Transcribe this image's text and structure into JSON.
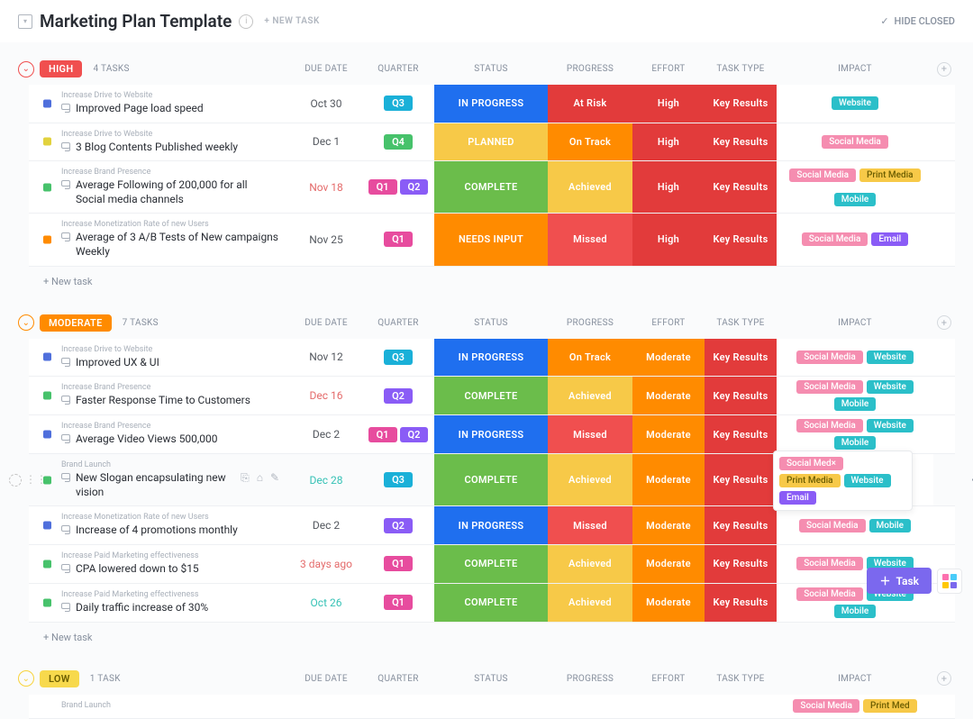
{
  "page": {
    "title": "Marketing Plan Template",
    "new_task": "+ NEW TASK",
    "hide_closed": "HIDE CLOSED",
    "new_task_row": "+ New task",
    "fab_task": "Task"
  },
  "columns": {
    "due_date": "DUE DATE",
    "quarter": "QUARTER",
    "status": "STATUS",
    "progress": "PROGRESS",
    "effort": "EFFORT",
    "task_type": "TASK TYPE",
    "impact": "IMPACT"
  },
  "colors": {
    "q1": "#e74c9e",
    "q2": "#8a5cf6",
    "q3": "#1ab0d8",
    "q4": "#47c26b",
    "status_in_progress": "#1f6fef",
    "status_planned": "#f7c948",
    "status_complete": "#6bbd4b",
    "status_needs_input": "#ff8b00",
    "prog_at_risk": "#e23b3b",
    "prog_on_track": "#ff8b00",
    "prog_achieved": "#f7c948",
    "prog_missed": "#f04f4f",
    "eff_high": "#e23b3b",
    "eff_moderate": "#ff8b00",
    "type_key": "#e23b3b",
    "tag_social": "#f58db0",
    "tag_website": "#2bbfc9",
    "tag_print": "#f7c948",
    "tag_mobile": "#2bbfc9",
    "tag_email": "#8a5cf6",
    "pill_high": "#f04f4f",
    "pill_moderate": "#ff8b00",
    "pill_low": "#f7d94c",
    "date_red": "#e46b6b",
    "date_teal": "#37c2b6"
  },
  "groups": [
    {
      "key": "high",
      "label": "High",
      "count": "4 TASKS",
      "pill_color": "#f04f4f",
      "chev": "chev-high",
      "tasks": [
        {
          "sq": "#4f6fdc",
          "crumb": "Increase Drive to Website",
          "name": "Improved Page load speed",
          "date": "Oct 30",
          "date_color": "#54585f",
          "quarters": [
            "Q3"
          ],
          "status": "IN PROGRESS",
          "status_c": "status_in_progress",
          "progress": "At Risk",
          "progress_c": "prog_at_risk",
          "effort": "High",
          "effort_c": "eff_high",
          "type": "Key Results",
          "tags": [
            {
              "t": "Website",
              "c": "tag_website"
            }
          ]
        },
        {
          "sq": "#e2d23e",
          "crumb": "Increase Drive to Website",
          "name": "3 Blog Contents Published weekly",
          "date": "Dec 1",
          "date_color": "#54585f",
          "quarters": [
            "Q4"
          ],
          "status": "PLANNED",
          "status_c": "status_planned",
          "progress": "On Track",
          "progress_c": "prog_on_track",
          "effort": "High",
          "effort_c": "eff_high",
          "type": "Key Results",
          "tags": [
            {
              "t": "Social Media",
              "c": "tag_social"
            }
          ]
        },
        {
          "sq": "#47c26b",
          "tall": true,
          "crumb": "Increase Brand Presence",
          "name": "Average Following of 200,000 for all Social media channels",
          "date": "Nov 18",
          "date_color": "#e46b6b",
          "quarters": [
            "Q1",
            "Q2"
          ],
          "status": "COMPLETE",
          "status_c": "status_complete",
          "progress": "Achieved",
          "progress_c": "prog_achieved",
          "effort": "High",
          "effort_c": "eff_high",
          "type": "Key Results",
          "tags": [
            {
              "t": "Social Media",
              "c": "tag_social"
            },
            {
              "t": "Print Media",
              "c": "tag_print"
            },
            {
              "t": "Mobile",
              "c": "tag_mobile"
            }
          ]
        },
        {
          "sq": "#ff8b00",
          "tall": true,
          "crumb": "Increase Monetization Rate of new Users",
          "name": "Average of 3 A/B Tests of New campaigns Weekly",
          "date": "Nov 25",
          "date_color": "#54585f",
          "quarters": [
            "Q1"
          ],
          "status": "NEEDS INPUT",
          "status_c": "status_needs_input",
          "progress": "Missed",
          "progress_c": "prog_missed",
          "effort": "High",
          "effort_c": "eff_high",
          "type": "Key Results",
          "tags": [
            {
              "t": "Social Media",
              "c": "tag_social"
            },
            {
              "t": "Email",
              "c": "tag_email"
            }
          ]
        }
      ]
    },
    {
      "key": "moderate",
      "label": "Moderate",
      "count": "7 TASKS",
      "pill_color": "#ff8b00",
      "chev": "chev-mod",
      "tasks": [
        {
          "sq": "#4f6fdc",
          "crumb": "Increase Drive to Website",
          "name": "Improved UX & UI",
          "date": "Nov 12",
          "date_color": "#54585f",
          "quarters": [
            "Q3"
          ],
          "status": "IN PROGRESS",
          "status_c": "status_in_progress",
          "progress": "On Track",
          "progress_c": "prog_on_track",
          "effort": "Moderate",
          "effort_c": "eff_moderate",
          "type": "Key Results",
          "tags": [
            {
              "t": "Social Media",
              "c": "tag_social"
            },
            {
              "t": "Website",
              "c": "tag_website"
            }
          ]
        },
        {
          "sq": "#47c26b",
          "crumb": "Increase Brand Presence",
          "name": "Faster Response Time to Customers",
          "date": "Dec 16",
          "date_color": "#e46b6b",
          "quarters": [
            "Q2"
          ],
          "status": "COMPLETE",
          "status_c": "status_complete",
          "progress": "Achieved",
          "progress_c": "prog_achieved",
          "effort": "Moderate",
          "effort_c": "eff_moderate",
          "type": "Key Results",
          "tags": [
            {
              "t": "Social Media",
              "c": "tag_social"
            },
            {
              "t": "Website",
              "c": "tag_website"
            },
            {
              "t": "Mobile",
              "c": "tag_mobile"
            }
          ]
        },
        {
          "sq": "#4f6fdc",
          "crumb": "Increase Brand Presence",
          "name": "Average Video Views 500,000",
          "date": "Dec 2",
          "date_color": "#54585f",
          "quarters": [
            "Q1",
            "Q2"
          ],
          "status": "IN PROGRESS",
          "status_c": "status_in_progress",
          "progress": "Missed",
          "progress_c": "prog_missed",
          "effort": "Moderate",
          "effort_c": "eff_moderate",
          "type": "Key Results",
          "tags": [
            {
              "t": "Social Media",
              "c": "tag_social"
            },
            {
              "t": "Website",
              "c": "tag_website"
            },
            {
              "t": "Mobile",
              "c": "tag_mobile"
            }
          ]
        },
        {
          "sq": "#47c26b",
          "hover": true,
          "crumb": "Brand Launch",
          "name": "New Slogan encapsulating new vision",
          "date": "Dec 28",
          "date_color": "#37c2b6",
          "quarters": [
            "Q3"
          ],
          "status": "COMPLETE",
          "status_c": "status_complete",
          "progress": "Achieved",
          "progress_c": "prog_achieved",
          "effort": "Moderate",
          "effort_c": "eff_moderate",
          "type": "Key Results",
          "popup_tags": [
            {
              "t": "Social Med×",
              "c": "tag_social"
            },
            {
              "t": "Print Media",
              "c": "tag_print"
            },
            {
              "t": "Website",
              "c": "tag_website"
            },
            {
              "t": "Email",
              "c": "tag_email"
            }
          ]
        },
        {
          "sq": "#4f6fdc",
          "crumb": "Increase Monetization Rate of new Users",
          "name": "Increase of 4 promotions monthly",
          "date": "Dec 2",
          "date_color": "#54585f",
          "quarters": [
            "Q2"
          ],
          "status": "IN PROGRESS",
          "status_c": "status_in_progress",
          "progress": "Missed",
          "progress_c": "prog_missed",
          "effort": "Moderate",
          "effort_c": "eff_moderate",
          "type": "Key Results",
          "tags": [
            {
              "t": "Social Media",
              "c": "tag_social"
            },
            {
              "t": "Mobile",
              "c": "tag_mobile"
            }
          ]
        },
        {
          "sq": "#47c26b",
          "crumb": "Increase Paid Marketing effectiveness",
          "name": "CPA lowered down to $15",
          "date": "3 days ago",
          "date_color": "#e46b6b",
          "quarters": [
            "Q1"
          ],
          "status": "COMPLETE",
          "status_c": "status_complete",
          "progress": "Achieved",
          "progress_c": "prog_achieved",
          "effort": "Moderate",
          "effort_c": "eff_moderate",
          "type": "Key Results",
          "tags": [
            {
              "t": "Social Media",
              "c": "tag_social"
            },
            {
              "t": "Website",
              "c": "tag_website"
            }
          ]
        },
        {
          "sq": "#47c26b",
          "crumb": "Increase Paid Marketing effectiveness",
          "name": "Daily traffic increase of 30%",
          "date": "Oct 26",
          "date_color": "#37c2b6",
          "quarters": [
            "Q1"
          ],
          "status": "COMPLETE",
          "status_c": "status_complete",
          "progress": "Achieved",
          "progress_c": "prog_achieved",
          "effort": "Moderate",
          "effort_c": "eff_moderate",
          "type": "Key Results",
          "tags": [
            {
              "t": "Social Media",
              "c": "tag_social"
            },
            {
              "t": "Website",
              "c": "tag_website"
            },
            {
              "t": "Mobile",
              "c": "tag_mobile"
            }
          ]
        }
      ]
    },
    {
      "key": "low",
      "label": "Low",
      "count": "1 TASK",
      "pill_color": "#f7d94c",
      "chev": "chev-low",
      "tasks": [
        {
          "sq": "#47c26b",
          "crumb": "Brand Launch",
          "name": "",
          "date": "",
          "date_color": "#54585f",
          "quarters": [],
          "status": "",
          "status_c": "",
          "progress": "",
          "progress_c": "",
          "effort": "",
          "effort_c": "",
          "type": "",
          "tags": [
            {
              "t": "Social Media",
              "c": "tag_social"
            },
            {
              "t": "Print Med",
              "c": "tag_print"
            }
          ],
          "truncated": true
        }
      ]
    }
  ],
  "quarter_colors": {
    "Q1": "#e74c9e",
    "Q2": "#8a5cf6",
    "Q3": "#1ab0d8",
    "Q4": "#47c26b"
  }
}
